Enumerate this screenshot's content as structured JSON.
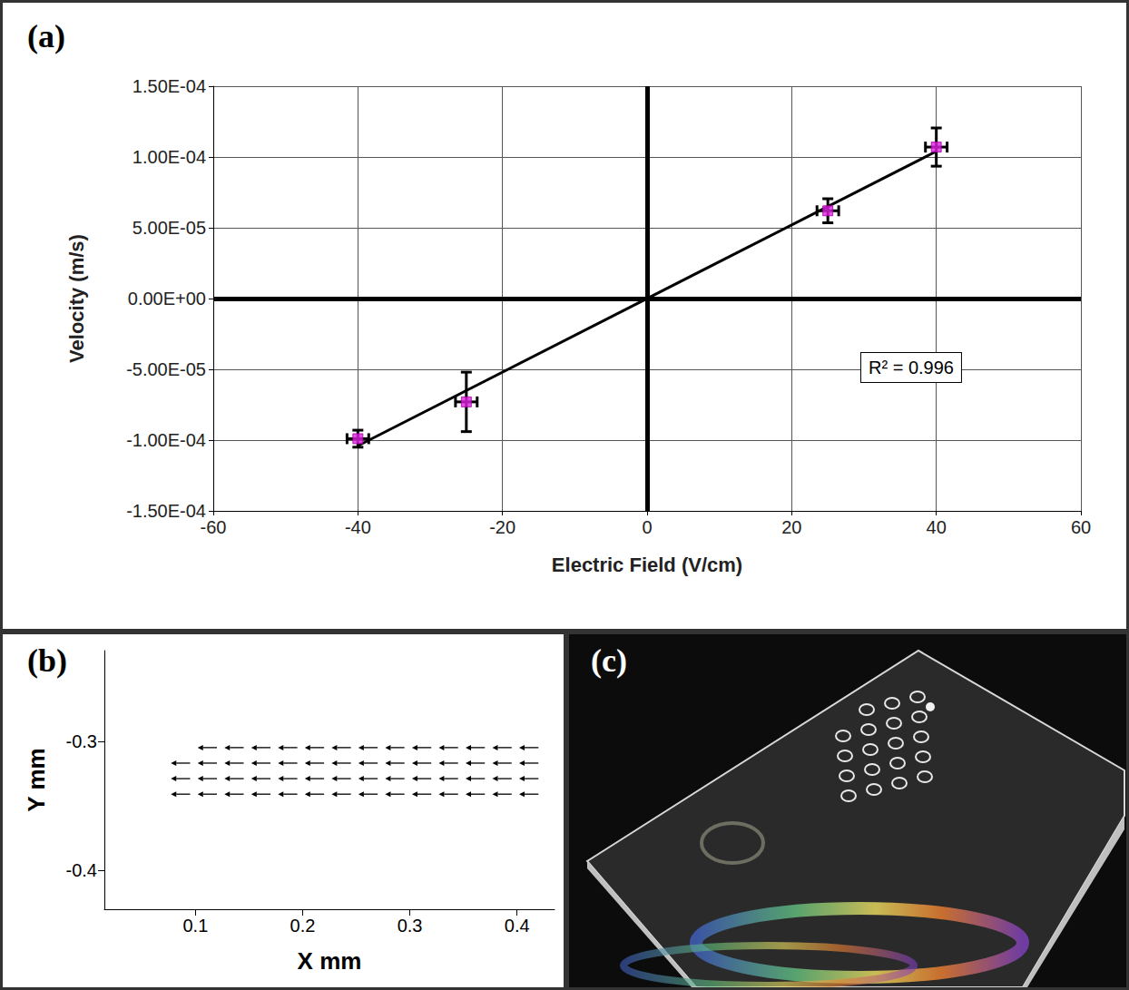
{
  "chart_data": [
    {
      "panel_label": "(a)",
      "type": "scatter",
      "x_label": "Electric Field (V/cm)",
      "y_label": "Velocity (m/s)",
      "x": [
        -40,
        -25,
        25,
        40
      ],
      "values": [
        -9.9e-05,
        -7.3e-05,
        6.2e-05,
        0.000107
      ],
      "y_error": [
        6e-06,
        2.1e-05,
        8.5e-06,
        1.35e-05
      ],
      "x_error": [
        1.5,
        1.5,
        1.5,
        1.5
      ],
      "color": "#e020e0",
      "marker": "square",
      "fit_line": {
        "x": [
          -40,
          40
        ],
        "values": [
          -0.000104,
          0.000104
        ],
        "color": "#000000"
      },
      "annotation": "R² = 0.996",
      "xlim": [
        -60,
        60
      ],
      "xticks": [
        -60,
        -40,
        -20,
        0,
        20,
        40,
        60
      ],
      "ylim": [
        -0.00015,
        0.00015
      ],
      "yticks": [
        {
          "value": -0.00015,
          "label": "-1.50E-04"
        },
        {
          "value": -0.0001,
          "label": "-1.00E-04"
        },
        {
          "value": -5e-05,
          "label": "-5.00E-05"
        },
        {
          "value": 0,
          "label": "0.00E+00"
        },
        {
          "value": 5e-05,
          "label": "5.00E-05"
        },
        {
          "value": 0.0001,
          "label": "1.00E-04"
        },
        {
          "value": 0.00015,
          "label": "1.50E-04"
        }
      ],
      "grid": true
    },
    {
      "panel_label": "(b)",
      "type": "vector",
      "x_label": "X mm",
      "y_label": "Y mm",
      "x": [
        0.12,
        0.145,
        0.17,
        0.195,
        0.22,
        0.245,
        0.27,
        0.295,
        0.32,
        0.345,
        0.37,
        0.395,
        0.42,
        0.095,
        0.12,
        0.145,
        0.17,
        0.195,
        0.22,
        0.245,
        0.27,
        0.295,
        0.32,
        0.345,
        0.37,
        0.395,
        0.42,
        0.095,
        0.12,
        0.145,
        0.17,
        0.195,
        0.22,
        0.245,
        0.27,
        0.295,
        0.32,
        0.345,
        0.37,
        0.395,
        0.42,
        0.095,
        0.12,
        0.145,
        0.17,
        0.195,
        0.22,
        0.245,
        0.27,
        0.295,
        0.32,
        0.345,
        0.37,
        0.395,
        0.42
      ],
      "y": [
        -0.305,
        -0.305,
        -0.305,
        -0.305,
        -0.305,
        -0.305,
        -0.305,
        -0.305,
        -0.305,
        -0.305,
        -0.305,
        -0.305,
        -0.305,
        -0.317,
        -0.317,
        -0.317,
        -0.317,
        -0.317,
        -0.317,
        -0.317,
        -0.317,
        -0.317,
        -0.317,
        -0.317,
        -0.317,
        -0.317,
        -0.317,
        -0.329,
        -0.329,
        -0.329,
        -0.329,
        -0.329,
        -0.329,
        -0.329,
        -0.329,
        -0.329,
        -0.329,
        -0.329,
        -0.329,
        -0.329,
        -0.329,
        -0.341,
        -0.341,
        -0.341,
        -0.341,
        -0.341,
        -0.341,
        -0.341,
        -0.341,
        -0.341,
        -0.341,
        -0.341,
        -0.341,
        -0.341,
        -0.341
      ],
      "u": [
        -0.018,
        -0.018,
        -0.018,
        -0.018,
        -0.018,
        -0.018,
        -0.018,
        -0.018,
        -0.018,
        -0.018,
        -0.018,
        -0.018,
        -0.018,
        -0.018,
        -0.018,
        -0.018,
        -0.018,
        -0.018,
        -0.018,
        -0.018,
        -0.018,
        -0.018,
        -0.018,
        -0.018,
        -0.018,
        -0.018,
        -0.018,
        -0.018,
        -0.018,
        -0.018,
        -0.018,
        -0.018,
        -0.018,
        -0.018,
        -0.018,
        -0.018,
        -0.018,
        -0.018,
        -0.018,
        -0.018,
        -0.018,
        -0.018,
        -0.018,
        -0.018,
        -0.018,
        -0.018,
        -0.018,
        -0.018,
        -0.018,
        -0.018,
        -0.018,
        -0.018,
        -0.018,
        -0.018,
        -0.018
      ],
      "v": [
        0,
        0,
        0,
        0,
        0,
        0,
        0,
        0,
        0,
        0,
        0,
        0,
        0,
        0,
        0,
        0,
        0,
        0,
        0,
        0,
        0,
        0,
        0,
        0,
        0,
        0,
        0,
        0,
        0,
        0,
        0,
        0,
        0,
        0,
        0,
        0,
        0,
        0,
        0,
        0,
        0,
        0,
        0,
        0,
        0,
        0,
        0,
        0,
        0,
        0,
        0,
        0,
        0,
        0,
        0
      ],
      "color": "#000000",
      "xlim": [
        0.015,
        0.435
      ],
      "xticks": [
        0.1,
        0.2,
        0.3,
        0.4
      ],
      "ylim": [
        -0.43,
        -0.23
      ],
      "yticks": [
        -0.4,
        -0.3
      ],
      "grid": false
    }
  ],
  "photo": {
    "panel_label": "(c)"
  }
}
